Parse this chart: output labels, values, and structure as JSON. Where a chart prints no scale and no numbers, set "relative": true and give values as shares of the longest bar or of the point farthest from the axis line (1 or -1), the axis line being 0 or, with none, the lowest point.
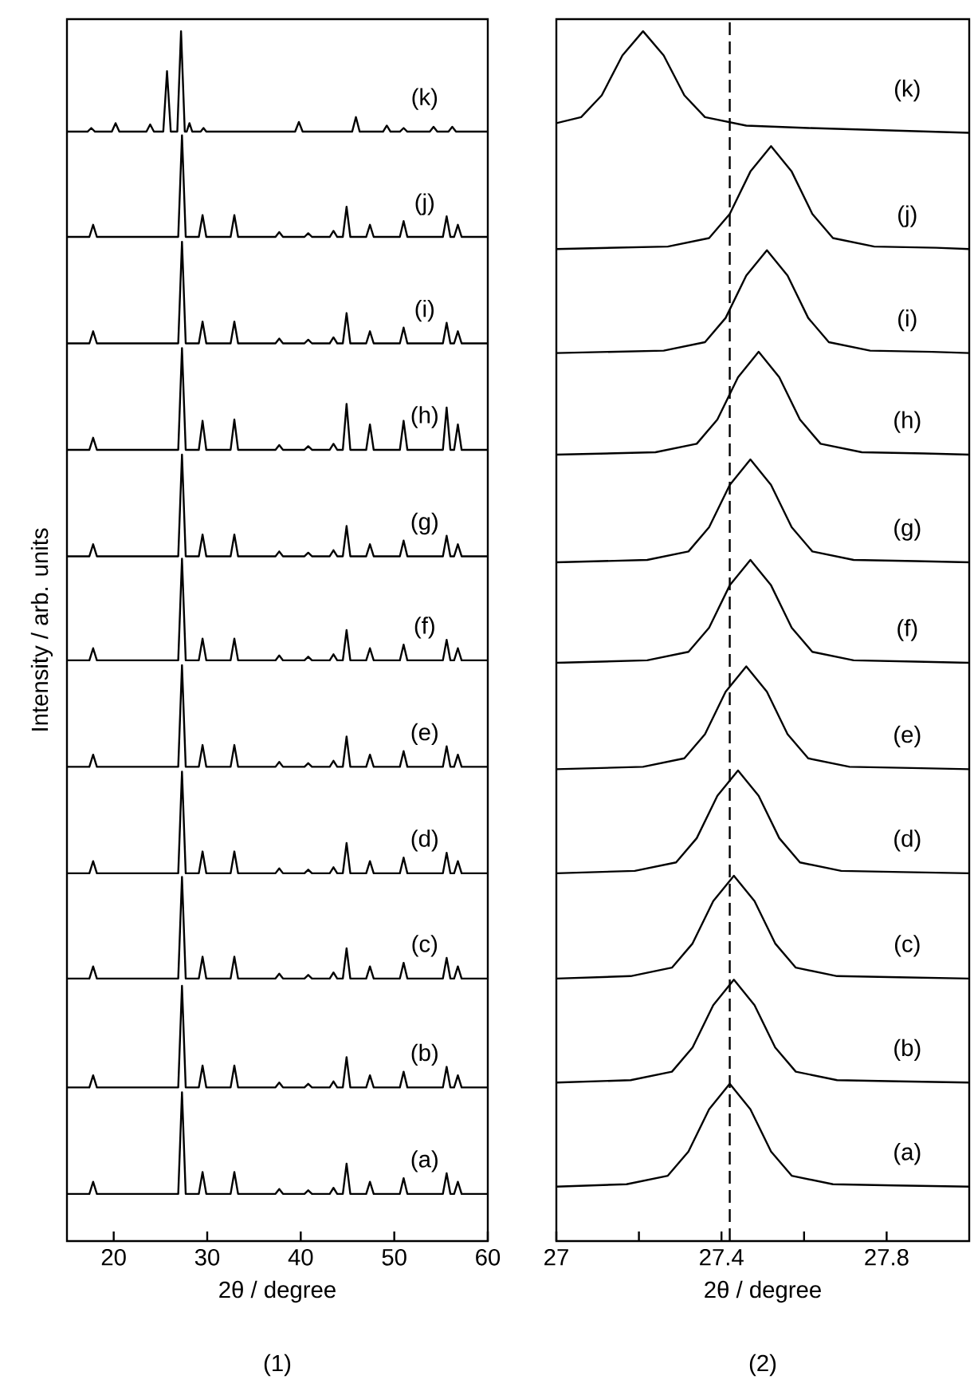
{
  "chart_data": [
    {
      "type": "line",
      "xlabel": "2θ / degree",
      "ylabel": "Intensity / arb. units",
      "annotations": [
        "(1)"
      ],
      "relative": true,
      "tick_labels": "x",
      "xlim": [
        15,
        60
      ],
      "xticks": [
        20,
        30,
        40,
        50,
        60
      ],
      "x": [
        15,
        17.4,
        17.8,
        18.2,
        26.9,
        27.3,
        27.7,
        29.1,
        29.5,
        29.9,
        32.5,
        32.9,
        33.3,
        37.3,
        37.7,
        38.1,
        40.4,
        40.8,
        41.2,
        43.1,
        43.5,
        43.9,
        44.5,
        44.9,
        45.3,
        47.0,
        47.4,
        47.8,
        50.6,
        51.0,
        51.4,
        55.2,
        55.6,
        56.0,
        56.4,
        56.8,
        57.2,
        60
      ],
      "series": [
        {
          "name": "(a)",
          "color": "#000000",
          "values": [
            0.039,
            0.039,
            0.049,
            0.039,
            0.039,
            0.123,
            0.039,
            0.039,
            0.057,
            0.039,
            0.039,
            0.057,
            0.039,
            0.039,
            0.043,
            0.039,
            0.039,
            0.042,
            0.039,
            0.039,
            0.044,
            0.039,
            0.039,
            0.064,
            0.039,
            0.039,
            0.049,
            0.039,
            0.039,
            0.052,
            0.039,
            0.039,
            0.056,
            0.039,
            0.039,
            0.049,
            0.039,
            0.039
          ]
        },
        {
          "name": "(b)",
          "color": "#000000",
          "values": [
            0.127,
            0.127,
            0.137,
            0.127,
            0.127,
            0.211,
            0.127,
            0.127,
            0.145,
            0.127,
            0.127,
            0.145,
            0.127,
            0.127,
            0.131,
            0.127,
            0.127,
            0.13,
            0.127,
            0.127,
            0.132,
            0.127,
            0.127,
            0.152,
            0.127,
            0.127,
            0.137,
            0.127,
            0.127,
            0.14,
            0.127,
            0.127,
            0.144,
            0.127,
            0.127,
            0.137,
            0.127,
            0.127
          ]
        },
        {
          "name": "(c)",
          "color": "#000000",
          "values": [
            0.217,
            0.217,
            0.227,
            0.217,
            0.217,
            0.301,
            0.217,
            0.217,
            0.235,
            0.217,
            0.217,
            0.235,
            0.217,
            0.217,
            0.221,
            0.217,
            0.217,
            0.22,
            0.217,
            0.217,
            0.222,
            0.217,
            0.217,
            0.242,
            0.217,
            0.217,
            0.227,
            0.217,
            0.217,
            0.23,
            0.217,
            0.217,
            0.234,
            0.217,
            0.217,
            0.227,
            0.217,
            0.217
          ]
        },
        {
          "name": "(d)",
          "color": "#000000",
          "values": [
            0.304,
            0.304,
            0.314,
            0.304,
            0.304,
            0.388,
            0.304,
            0.304,
            0.322,
            0.304,
            0.304,
            0.322,
            0.304,
            0.304,
            0.308,
            0.304,
            0.304,
            0.307,
            0.304,
            0.304,
            0.309,
            0.304,
            0.304,
            0.329,
            0.304,
            0.304,
            0.314,
            0.304,
            0.304,
            0.317,
            0.304,
            0.304,
            0.321,
            0.304,
            0.304,
            0.314,
            0.304,
            0.304
          ]
        },
        {
          "name": "(e)",
          "color": "#000000",
          "values": [
            0.392,
            0.392,
            0.402,
            0.392,
            0.392,
            0.476,
            0.392,
            0.392,
            0.41,
            0.392,
            0.392,
            0.41,
            0.392,
            0.392,
            0.396,
            0.392,
            0.392,
            0.395,
            0.392,
            0.392,
            0.397,
            0.392,
            0.392,
            0.417,
            0.392,
            0.392,
            0.402,
            0.392,
            0.392,
            0.405,
            0.392,
            0.392,
            0.409,
            0.392,
            0.392,
            0.402,
            0.392,
            0.392
          ]
        },
        {
          "name": "(f)",
          "color": "#000000",
          "values": [
            0.48,
            0.48,
            0.49,
            0.48,
            0.48,
            0.564,
            0.48,
            0.48,
            0.498,
            0.48,
            0.48,
            0.498,
            0.48,
            0.48,
            0.484,
            0.48,
            0.48,
            0.483,
            0.48,
            0.48,
            0.485,
            0.48,
            0.48,
            0.505,
            0.48,
            0.48,
            0.49,
            0.48,
            0.48,
            0.493,
            0.48,
            0.48,
            0.497,
            0.48,
            0.48,
            0.49,
            0.48,
            0.48
          ]
        },
        {
          "name": "(g)",
          "color": "#000000",
          "values": [
            0.566,
            0.566,
            0.576,
            0.566,
            0.566,
            0.65,
            0.566,
            0.566,
            0.584,
            0.566,
            0.566,
            0.584,
            0.566,
            0.566,
            0.57,
            0.566,
            0.566,
            0.569,
            0.566,
            0.566,
            0.571,
            0.566,
            0.566,
            0.591,
            0.566,
            0.566,
            0.576,
            0.566,
            0.566,
            0.579,
            0.566,
            0.566,
            0.583,
            0.566,
            0.566,
            0.576,
            0.566,
            0.566
          ]
        },
        {
          "name": "(h)",
          "color": "#000000",
          "values": [
            0.654,
            0.654,
            0.664,
            0.654,
            0.654,
            0.738,
            0.654,
            0.654,
            0.678,
            0.654,
            0.654,
            0.679,
            0.654,
            0.654,
            0.658,
            0.654,
            0.654,
            0.657,
            0.654,
            0.654,
            0.659,
            0.654,
            0.654,
            0.692,
            0.654,
            0.654,
            0.675,
            0.654,
            0.654,
            0.678,
            0.654,
            0.654,
            0.689,
            0.654,
            0.654,
            0.675,
            0.654,
            0.654
          ]
        },
        {
          "name": "(i)",
          "color": "#000000",
          "values": [
            0.742,
            0.742,
            0.752,
            0.742,
            0.742,
            0.826,
            0.742,
            0.742,
            0.76,
            0.742,
            0.742,
            0.76,
            0.742,
            0.742,
            0.746,
            0.742,
            0.742,
            0.745,
            0.742,
            0.742,
            0.747,
            0.742,
            0.742,
            0.767,
            0.742,
            0.742,
            0.752,
            0.742,
            0.742,
            0.755,
            0.742,
            0.742,
            0.759,
            0.742,
            0.742,
            0.752,
            0.742,
            0.742
          ]
        },
        {
          "name": "(j)",
          "color": "#000000",
          "values": [
            0.83,
            0.83,
            0.84,
            0.83,
            0.83,
            0.914,
            0.83,
            0.83,
            0.848,
            0.83,
            0.83,
            0.848,
            0.83,
            0.83,
            0.834,
            0.83,
            0.83,
            0.833,
            0.83,
            0.83,
            0.835,
            0.83,
            0.83,
            0.855,
            0.83,
            0.83,
            0.84,
            0.83,
            0.83,
            0.843,
            0.83,
            0.83,
            0.847,
            0.83,
            0.83,
            0.84,
            0.83,
            0.83
          ]
        },
        {
          "name": "(k)",
          "color": "#000000",
          "x": [
            15,
            17.2,
            17.6,
            18.0,
            19.8,
            20.2,
            20.6,
            23.5,
            23.9,
            24.3,
            25.3,
            25.7,
            26.1,
            26.8,
            27.2,
            27.6,
            27.8,
            28.1,
            28.4,
            29.3,
            29.6,
            29.9,
            39.4,
            39.8,
            40.2,
            45.5,
            45.9,
            46.3,
            48.8,
            49.2,
            49.6,
            50.6,
            51.0,
            51.4,
            53.8,
            54.2,
            54.6,
            55.8,
            56.2,
            56.6,
            60
          ],
          "values": [
            0.917,
            0.917,
            0.92,
            0.917,
            0.917,
            0.924,
            0.917,
            0.917,
            0.923,
            0.917,
            0.917,
            0.967,
            0.917,
            0.917,
            1.0,
            0.917,
            0.917,
            0.924,
            0.917,
            0.917,
            0.92,
            0.917,
            0.917,
            0.925,
            0.917,
            0.917,
            0.929,
            0.917,
            0.917,
            0.922,
            0.917,
            0.917,
            0.92,
            0.917,
            0.917,
            0.921,
            0.917,
            0.917,
            0.921,
            0.917,
            0.917
          ]
        }
      ]
    },
    {
      "type": "line",
      "xlabel": "2θ / degree",
      "annotations": [
        "(2)"
      ],
      "relative": true,
      "tick_labels": "x",
      "xlim": [
        27,
        28
      ],
      "xticks": [
        27,
        {
          "value": 27.2,
          "label": null
        },
        27.4,
        {
          "value": 27.6,
          "label": null
        },
        27.8
      ],
      "ref_lines": [
        {
          "axis": "x",
          "value": 27.42,
          "line_style": "dashed",
          "color": "#000000"
        }
      ],
      "series": [
        {
          "name": "(a)",
          "color": "#000000",
          "x": [
            27,
            27.17,
            27.27,
            27.32,
            27.37,
            27.42,
            27.47,
            27.52,
            27.57,
            27.67,
            27.82,
            28
          ],
          "values": [
            0.045,
            0.047,
            0.054,
            0.074,
            0.109,
            0.13,
            0.109,
            0.074,
            0.054,
            0.047,
            0.046,
            0.045
          ]
        },
        {
          "name": "(b)",
          "color": "#000000",
          "x": [
            27,
            27.18,
            27.28,
            27.33,
            27.38,
            27.43,
            27.48,
            27.53,
            27.58,
            27.68,
            27.83,
            28
          ],
          "values": [
            0.131,
            0.133,
            0.14,
            0.16,
            0.195,
            0.216,
            0.195,
            0.16,
            0.14,
            0.133,
            0.132,
            0.131
          ]
        },
        {
          "name": "(c)",
          "color": "#000000",
          "x": [
            27,
            27.18,
            27.28,
            27.33,
            27.38,
            27.43,
            27.48,
            27.53,
            27.58,
            27.68,
            27.83,
            28
          ],
          "values": [
            0.217,
            0.219,
            0.226,
            0.246,
            0.281,
            0.302,
            0.281,
            0.246,
            0.226,
            0.219,
            0.218,
            0.217
          ]
        },
        {
          "name": "(d)",
          "color": "#000000",
          "x": [
            27,
            27.19,
            27.29,
            27.34,
            27.39,
            27.44,
            27.49,
            27.54,
            27.59,
            27.69,
            27.84,
            28
          ],
          "values": [
            0.304,
            0.306,
            0.313,
            0.333,
            0.368,
            0.389,
            0.368,
            0.333,
            0.313,
            0.306,
            0.305,
            0.304
          ]
        },
        {
          "name": "(e)",
          "color": "#000000",
          "x": [
            27,
            27.21,
            27.31,
            27.36,
            27.41,
            27.46,
            27.51,
            27.56,
            27.61,
            27.71,
            27.86,
            28
          ],
          "values": [
            0.39,
            0.392,
            0.399,
            0.419,
            0.454,
            0.475,
            0.454,
            0.419,
            0.399,
            0.392,
            0.391,
            0.39
          ]
        },
        {
          "name": "(f)",
          "color": "#000000",
          "x": [
            27,
            27.22,
            27.32,
            27.37,
            27.42,
            27.47,
            27.52,
            27.57,
            27.62,
            27.72,
            27.87,
            28
          ],
          "values": [
            0.478,
            0.48,
            0.487,
            0.507,
            0.542,
            0.563,
            0.542,
            0.507,
            0.487,
            0.48,
            0.479,
            0.478
          ]
        },
        {
          "name": "(g)",
          "color": "#000000",
          "x": [
            27,
            27.22,
            27.32,
            27.37,
            27.42,
            27.47,
            27.52,
            27.57,
            27.62,
            27.72,
            27.87,
            28
          ],
          "values": [
            0.561,
            0.563,
            0.57,
            0.59,
            0.625,
            0.646,
            0.625,
            0.59,
            0.57,
            0.563,
            0.562,
            0.561
          ]
        },
        {
          "name": "(h)",
          "color": "#000000",
          "x": [
            27,
            27.24,
            27.34,
            27.39,
            27.44,
            27.49,
            27.54,
            27.59,
            27.64,
            27.74,
            27.89,
            28
          ],
          "values": [
            0.65,
            0.652,
            0.659,
            0.679,
            0.714,
            0.735,
            0.714,
            0.679,
            0.659,
            0.652,
            0.651,
            0.65
          ]
        },
        {
          "name": "(i)",
          "color": "#000000",
          "x": [
            27,
            27.26,
            27.36,
            27.41,
            27.46,
            27.51,
            27.56,
            27.61,
            27.66,
            27.76,
            27.91,
            28
          ],
          "values": [
            0.734,
            0.736,
            0.743,
            0.763,
            0.798,
            0.819,
            0.798,
            0.763,
            0.743,
            0.736,
            0.735,
            0.734
          ]
        },
        {
          "name": "(j)",
          "color": "#000000",
          "x": [
            27,
            27.27,
            27.37,
            27.42,
            27.47,
            27.52,
            27.57,
            27.62,
            27.67,
            27.77,
            27.92,
            28
          ],
          "values": [
            0.82,
            0.822,
            0.829,
            0.849,
            0.884,
            0.905,
            0.884,
            0.849,
            0.829,
            0.822,
            0.821,
            0.82
          ]
        },
        {
          "name": "(k)",
          "color": "#000000",
          "x": [
            27,
            27.06,
            27.11,
            27.16,
            27.21,
            27.26,
            27.31,
            27.36,
            27.46,
            27.61,
            28
          ],
          "values": [
            0.924,
            0.929,
            0.947,
            0.98,
            1.0,
            0.98,
            0.947,
            0.929,
            0.922,
            0.92,
            0.916
          ]
        }
      ]
    }
  ]
}
